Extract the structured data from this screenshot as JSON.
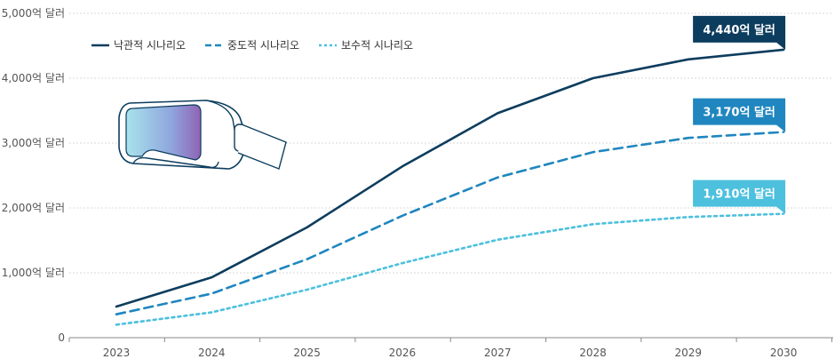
{
  "chart_data": {
    "type": "line",
    "x": [
      "2023",
      "2024",
      "2025",
      "2026",
      "2027",
      "2028",
      "2029",
      "2030"
    ],
    "y_ticks": [
      0,
      1000,
      2000,
      3000,
      4000,
      5000
    ],
    "y_tick_labels": [
      "0",
      "1,000억 달러",
      "2,000억 달러",
      "3,000억 달러",
      "4,000억 달러",
      "5,000억 달러"
    ],
    "ylim": [
      0,
      5000
    ],
    "grid": true,
    "legend_position": "top-left",
    "series": [
      {
        "name": "낙관적 시나리오",
        "color": "#0d3d5e",
        "dash": "solid",
        "values": [
          480,
          930,
          1700,
          2640,
          3460,
          4000,
          4290,
          4440
        ],
        "end_label": "4,440억 달러"
      },
      {
        "name": "중도적 시나리오",
        "color": "#1f86bf",
        "dash": "dashed",
        "values": [
          360,
          680,
          1210,
          1880,
          2470,
          2860,
          3080,
          3170
        ],
        "end_label": "3,170억 달러"
      },
      {
        "name": "보수적 시나리오",
        "color": "#4cc0dd",
        "dash": "dotted",
        "values": [
          200,
          390,
          740,
          1150,
          1510,
          1750,
          1860,
          1910
        ],
        "end_label": "1,910억 달러"
      }
    ]
  },
  "illustration": {
    "icon": "vr-headset-icon"
  }
}
